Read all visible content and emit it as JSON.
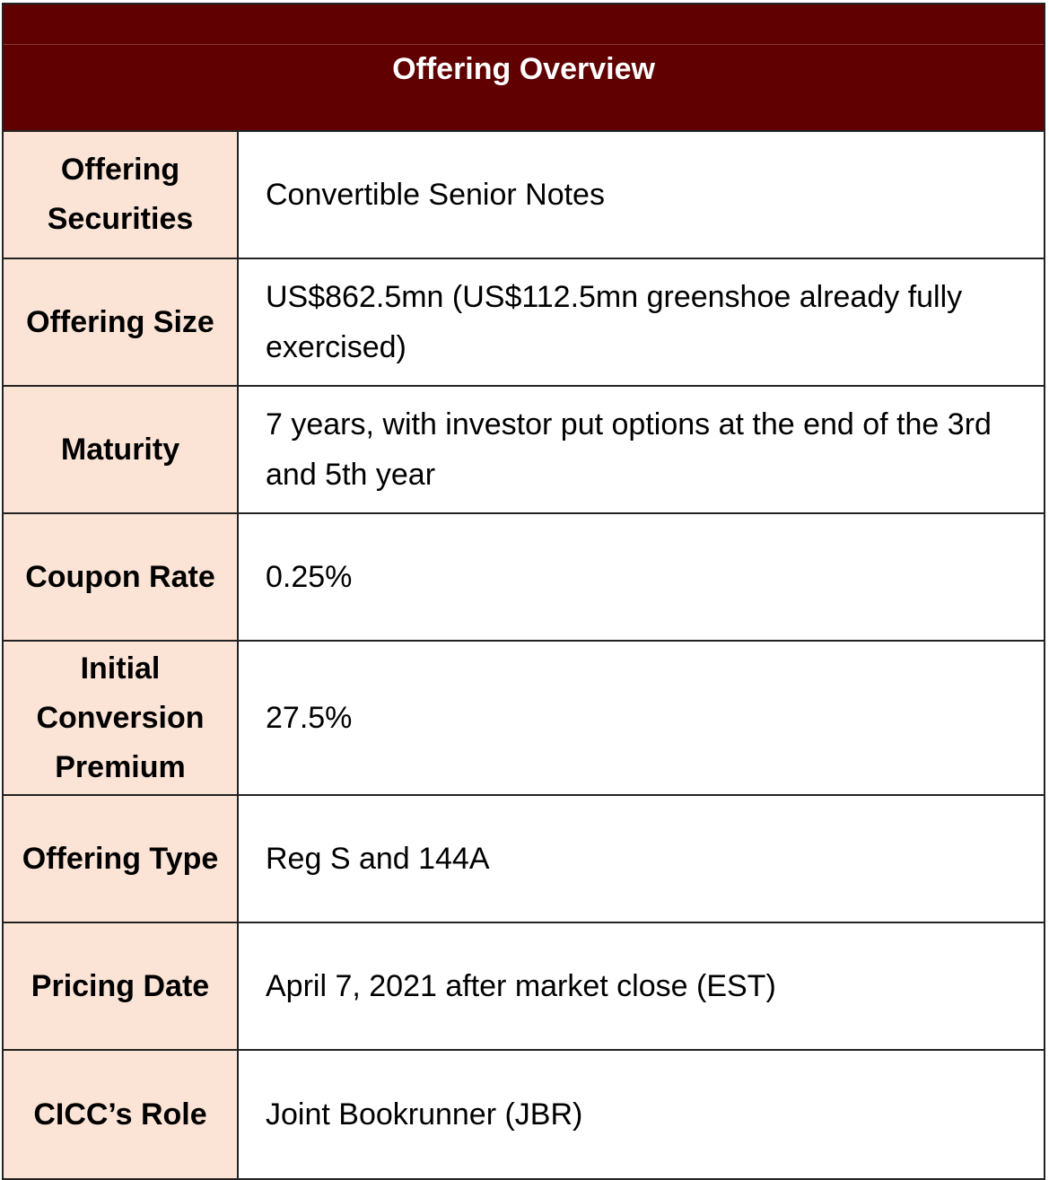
{
  "title": "Offering Overview",
  "colors": {
    "header_bg": "#600000",
    "label_bg": "#fbe4d6"
  },
  "rows": [
    {
      "label": "Offering Securities",
      "value": "Convertible Senior Notes"
    },
    {
      "label": "Offering Size",
      "value": "US$862.5mn (US$112.5mn greenshoe already fully exercised)"
    },
    {
      "label": "Maturity",
      "value": "7 years, with investor put options at the end of the 3rd and 5th year"
    },
    {
      "label": "Coupon Rate",
      "value": "0.25%"
    },
    {
      "label": "Initial Conversion Premium",
      "value": "27.5%"
    },
    {
      "label": "Offering Type",
      "value": "Reg S and 144A"
    },
    {
      "label": "Pricing Date",
      "value": "April 7, 2021 after market close (EST)"
    },
    {
      "label": "CICC’s Role",
      "value": "Joint Bookrunner (JBR)"
    }
  ]
}
